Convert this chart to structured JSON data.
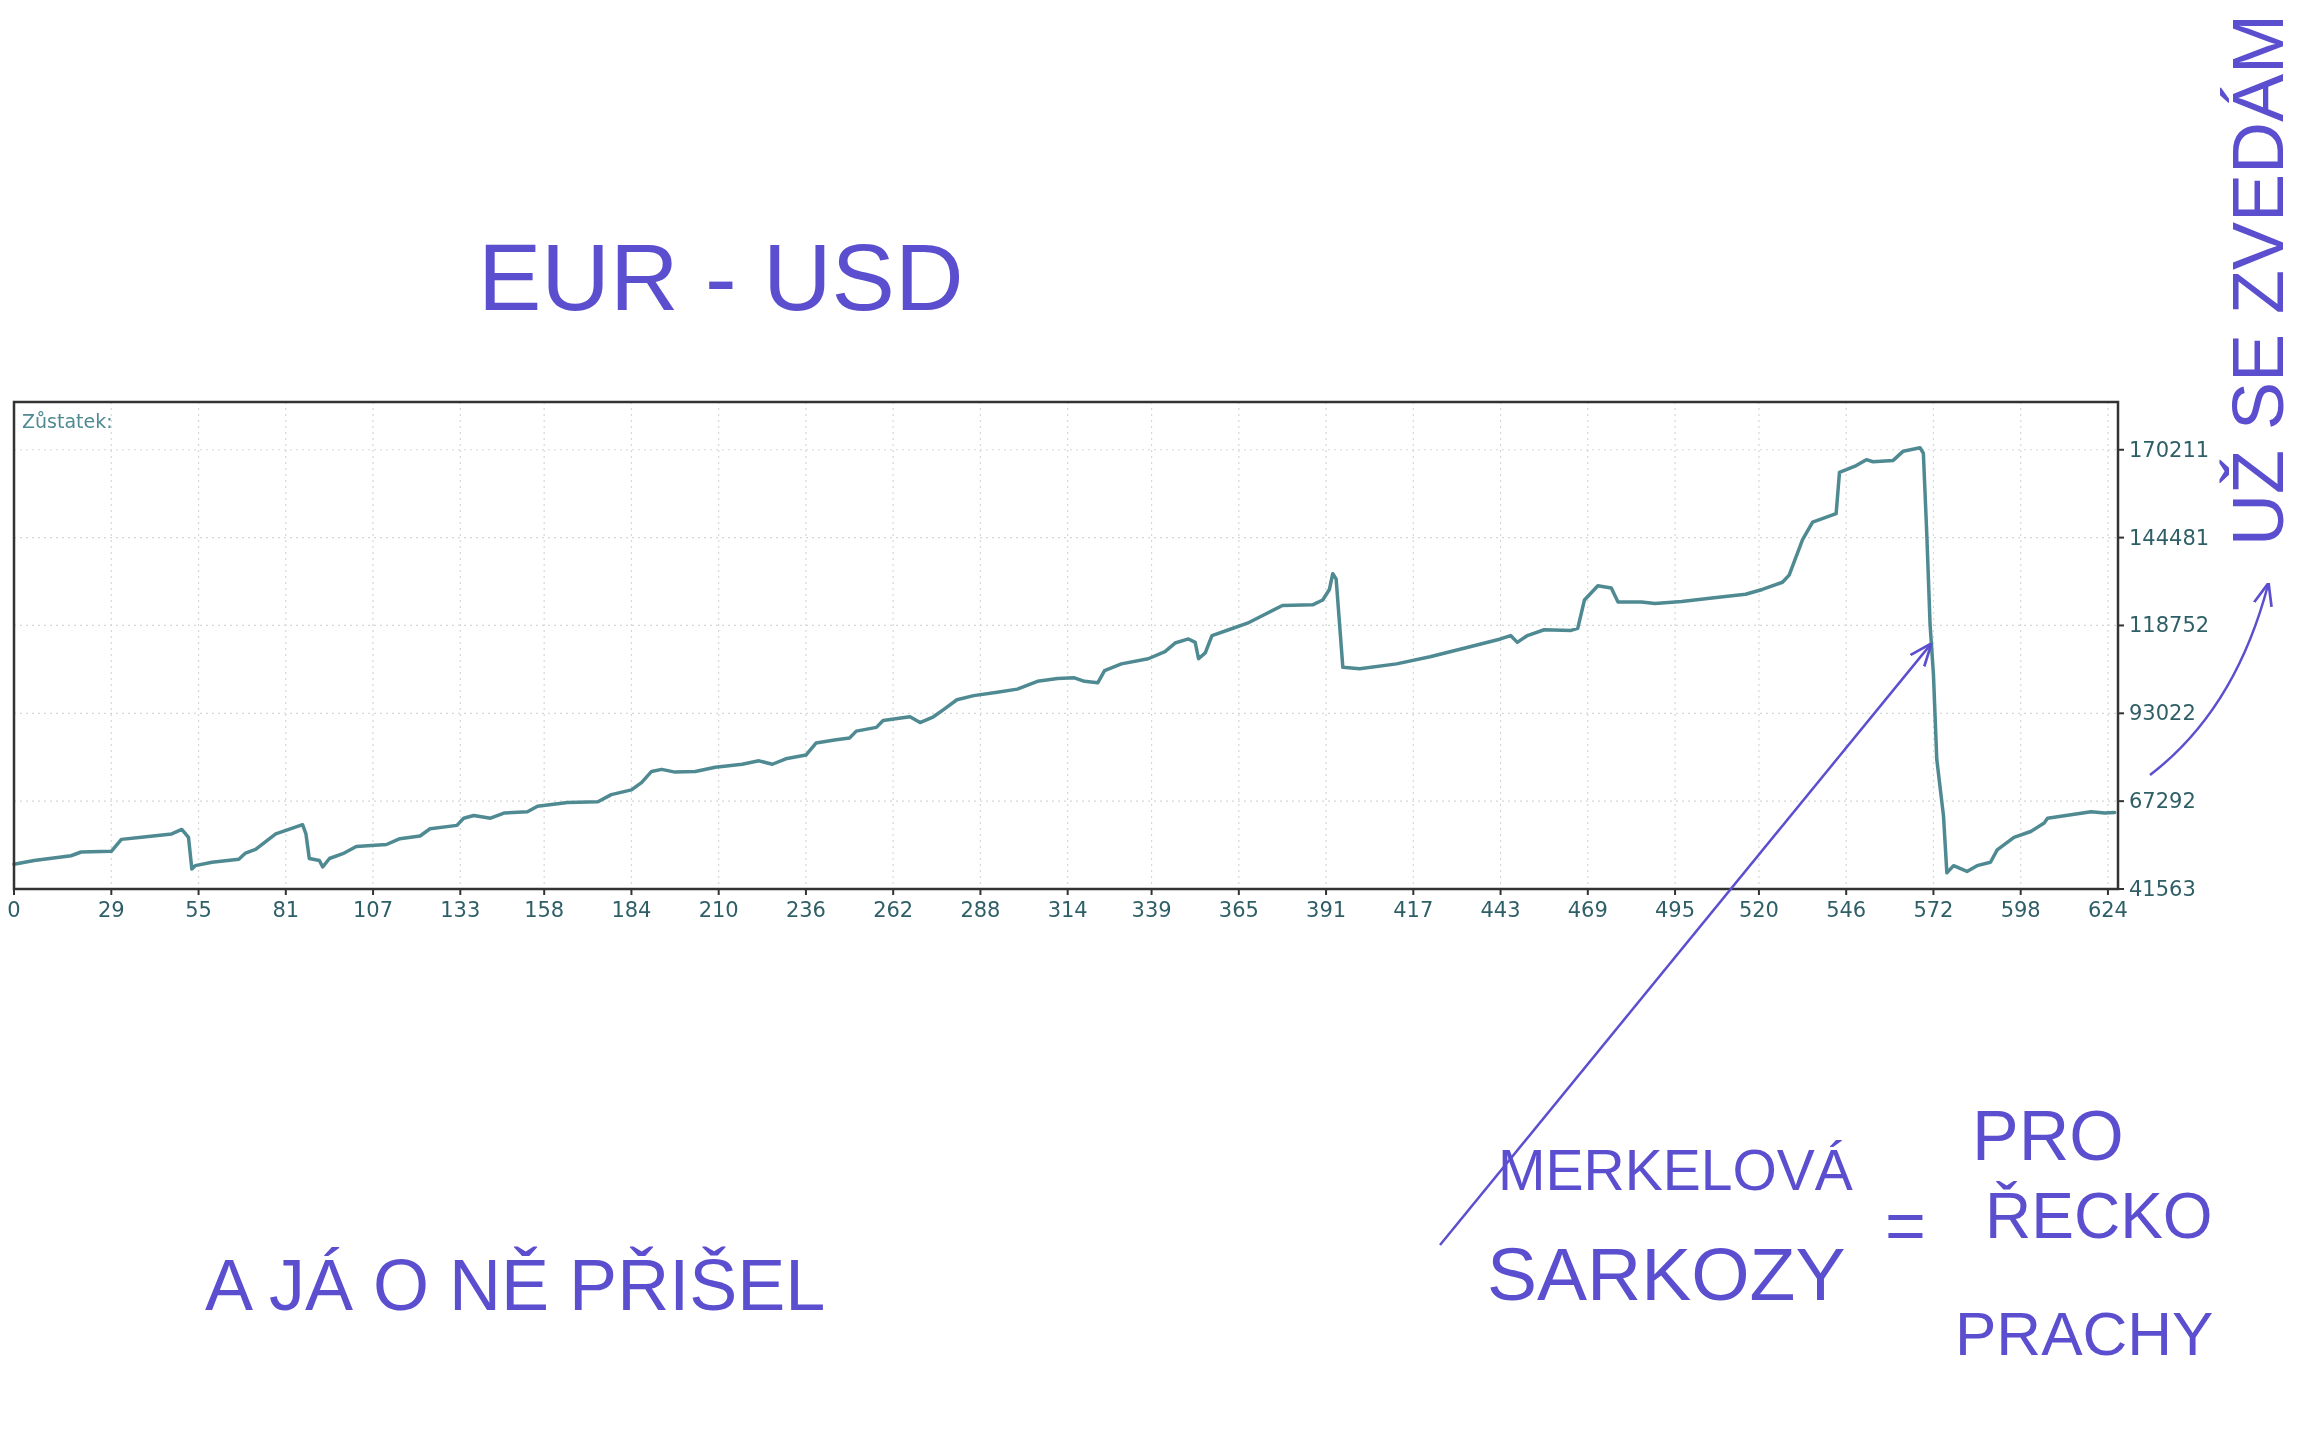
{
  "chart_data": {
    "type": "line",
    "title": "EUR - USD",
    "x": [
      0,
      6,
      17,
      20,
      29,
      32,
      38,
      47,
      50,
      52,
      53,
      54,
      59,
      67,
      69,
      72,
      78,
      83,
      86,
      87,
      88,
      91,
      92,
      94,
      98,
      102,
      111,
      115,
      121,
      124,
      132,
      134,
      137,
      142,
      146,
      153,
      156,
      165,
      174,
      178,
      184,
      187,
      190,
      193,
      197,
      203,
      209,
      217,
      222,
      226,
      230,
      236,
      239,
      245,
      249,
      251,
      257,
      259,
      267,
      270,
      274,
      277,
      281,
      286,
      293,
      299,
      305,
      311,
      316,
      319,
      323,
      325,
      330,
      338,
      343,
      346,
      350,
      352,
      353,
      355,
      357,
      362,
      368,
      373,
      378,
      387,
      390,
      392,
      393,
      394,
      396,
      401,
      412,
      422,
      433,
      443,
      446,
      448,
      451,
      456,
      464,
      466,
      468,
      472,
      476,
      478,
      485,
      489,
      497,
      506,
      516,
      521,
      527,
      529,
      533,
      536,
      543,
      544,
      549,
      552,
      554,
      560,
      563,
      568,
      569,
      570,
      571,
      572,
      573,
      575,
      576,
      578,
      582,
      585,
      589,
      591,
      596,
      601,
      605,
      606,
      610,
      619,
      623,
      626
    ],
    "series": [
      {
        "name": "Zůstatek:",
        "color": "#4f8a92",
        "values": [
          48800,
          49900,
          51300,
          52400,
          52600,
          56100,
          56700,
          57700,
          59000,
          56700,
          47400,
          48400,
          49400,
          50300,
          52100,
          53200,
          57700,
          59400,
          60400,
          57700,
          50500,
          49900,
          48000,
          50500,
          51900,
          54000,
          54600,
          56300,
          57100,
          59200,
          60200,
          62300,
          63100,
          62300,
          63800,
          64200,
          65800,
          66900,
          67100,
          69200,
          70600,
          72700,
          76000,
          76600,
          75800,
          76000,
          77200,
          78100,
          79100,
          78100,
          79700,
          80800,
          84300,
          85300,
          85800,
          87800,
          88900,
          90900,
          92000,
          90300,
          92000,
          94100,
          97000,
          98200,
          99200,
          100100,
          102400,
          103200,
          103400,
          102400,
          102000,
          105500,
          107500,
          109000,
          111100,
          113600,
          114800,
          113800,
          109000,
          110700,
          115800,
          117500,
          119600,
          122100,
          124600,
          124800,
          126200,
          129300,
          133900,
          132400,
          106500,
          106100,
          107500,
          109600,
          112300,
          114800,
          115800,
          113800,
          115800,
          117500,
          117300,
          117900,
          126200,
          130400,
          129700,
          125600,
          125600,
          125200,
          125800,
          126800,
          127900,
          129300,
          131400,
          133500,
          143900,
          149000,
          151500,
          163600,
          165600,
          167300,
          166700,
          167100,
          169800,
          170800,
          169200,
          145900,
          119000,
          104400,
          79500,
          62900,
          46300,
          48400,
          46700,
          48400,
          49400,
          53000,
          56700,
          58400,
          60900,
          62300,
          62900,
          64200,
          63800,
          64000
        ]
      }
    ],
    "xlim": [
      0,
      627
    ],
    "xticks": [
      0,
      29,
      55,
      81,
      107,
      133,
      158,
      184,
      210,
      236,
      262,
      288,
      314,
      339,
      365,
      391,
      417,
      443,
      469,
      495,
      520,
      546,
      572,
      598,
      624
    ],
    "ylim": [
      41563,
      184200
    ],
    "yticks": [
      41563,
      67292,
      93022,
      118752,
      144481,
      170211
    ],
    "grid": true,
    "legend": "top left",
    "annotations": [
      {
        "text": "MERKELOVÁ SARKOZY = PRO ŘECKO PRACHY",
        "x": 571,
        "y": 113000
      },
      "UŽ SE ZVEDÁM",
      "A JÁ O NĚ PŘIŠEL"
    ]
  }
}
